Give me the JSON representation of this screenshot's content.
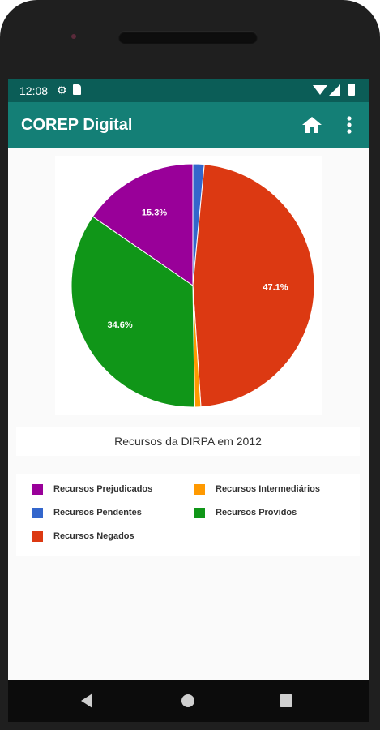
{
  "status_bar": {
    "time": "12:08",
    "icons": [
      "settings-icon",
      "sd-card-icon",
      "wifi-icon",
      "signal-icon",
      "battery-icon"
    ]
  },
  "app_bar": {
    "title": "COREP Digital",
    "actions": [
      "home-icon",
      "more-vert-icon"
    ],
    "color": "#147f76",
    "status_color": "#0b5d57"
  },
  "chart_data": {
    "type": "pie",
    "title": "Recursos da DIRPA em 2012",
    "slices": [
      {
        "label": "Recursos Pendentes",
        "value": 1.5,
        "color": "#3366cc",
        "show_label": false
      },
      {
        "label": "Recursos Negados",
        "value": 47.1,
        "color": "#dc3912",
        "show_label": true
      },
      {
        "label": "Recursos Intermediários",
        "value": 0.8,
        "color": "#ff9900",
        "show_label": false
      },
      {
        "label": "Recursos Providos",
        "value": 34.6,
        "color": "#109618",
        "show_label": true
      },
      {
        "label": "Recursos Prejudicados",
        "value": 15.3,
        "color": "#990099",
        "show_label": true
      }
    ]
  },
  "legend": [
    {
      "label": "Recursos Prejudicados",
      "color": "#990099"
    },
    {
      "label": "Recursos Intermediários",
      "color": "#ff9900"
    },
    {
      "label": "Recursos Pendentes",
      "color": "#3366cc"
    },
    {
      "label": "Recursos Providos",
      "color": "#109618"
    },
    {
      "label": "Recursos Negados",
      "color": "#dc3912"
    }
  ],
  "nav_bar": {
    "buttons": [
      "back-icon",
      "home-nav-icon",
      "recents-icon"
    ]
  }
}
